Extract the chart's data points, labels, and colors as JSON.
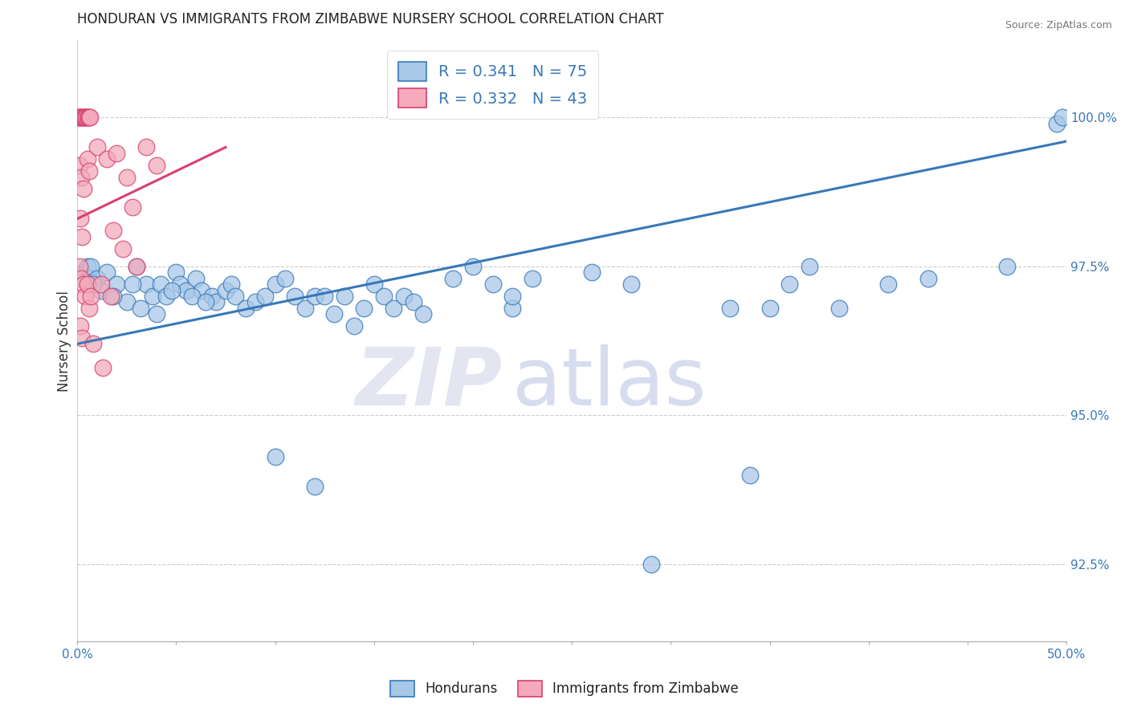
{
  "title": "HONDURAN VS IMMIGRANTS FROM ZIMBABWE NURSERY SCHOOL CORRELATION CHART",
  "source": "Source: ZipAtlas.com",
  "ylabel": "Nursery School",
  "ytick_values": [
    92.5,
    95.0,
    97.5,
    100.0
  ],
  "xlim": [
    0.0,
    50.0
  ],
  "ylim": [
    91.2,
    101.3
  ],
  "blue_color": "#a8c8e8",
  "pink_color": "#f4aabb",
  "blue_line_color": "#3878b8",
  "pink_line_color": "#d84070",
  "blue_regression": [
    0,
    96.2,
    50,
    99.6
  ],
  "pink_regression": [
    0,
    98.3,
    7.5,
    99.5
  ],
  "blue_dots": [
    [
      0.3,
      97.4
    ],
    [
      0.5,
      97.5
    ],
    [
      0.6,
      97.3
    ],
    [
      0.7,
      97.5
    ],
    [
      1.0,
      97.3
    ],
    [
      1.2,
      97.1
    ],
    [
      1.5,
      97.4
    ],
    [
      2.0,
      97.2
    ],
    [
      2.5,
      96.9
    ],
    [
      3.0,
      97.5
    ],
    [
      3.5,
      97.2
    ],
    [
      3.8,
      97.0
    ],
    [
      4.2,
      97.2
    ],
    [
      4.5,
      97.0
    ],
    [
      5.0,
      97.4
    ],
    [
      5.2,
      97.2
    ],
    [
      5.5,
      97.1
    ],
    [
      6.0,
      97.3
    ],
    [
      6.3,
      97.1
    ],
    [
      6.8,
      97.0
    ],
    [
      7.0,
      96.9
    ],
    [
      7.5,
      97.1
    ],
    [
      7.8,
      97.2
    ],
    [
      8.0,
      97.0
    ],
    [
      8.5,
      96.8
    ],
    [
      9.0,
      96.9
    ],
    [
      9.5,
      97.0
    ],
    [
      10.0,
      97.2
    ],
    [
      10.5,
      97.3
    ],
    [
      11.0,
      97.0
    ],
    [
      11.5,
      96.8
    ],
    [
      12.0,
      97.0
    ],
    [
      12.5,
      97.0
    ],
    [
      13.0,
      96.7
    ],
    [
      13.5,
      97.0
    ],
    [
      14.0,
      96.5
    ],
    [
      14.5,
      96.8
    ],
    [
      15.0,
      97.2
    ],
    [
      15.5,
      97.0
    ],
    [
      16.0,
      96.8
    ],
    [
      16.5,
      97.0
    ],
    [
      17.0,
      96.9
    ],
    [
      17.5,
      96.7
    ],
    [
      19.0,
      97.3
    ],
    [
      20.0,
      97.5
    ],
    [
      21.0,
      97.2
    ],
    [
      22.0,
      96.8
    ],
    [
      0.8,
      97.2
    ],
    [
      1.8,
      97.0
    ],
    [
      3.2,
      96.8
    ],
    [
      4.0,
      96.7
    ],
    [
      5.8,
      97.0
    ],
    [
      6.5,
      96.9
    ],
    [
      2.8,
      97.2
    ],
    [
      4.8,
      97.1
    ],
    [
      23.0,
      97.3
    ],
    [
      26.0,
      97.4
    ],
    [
      10.0,
      94.3
    ],
    [
      12.0,
      93.8
    ],
    [
      28.0,
      97.2
    ],
    [
      33.0,
      96.8
    ],
    [
      34.0,
      94.0
    ],
    [
      35.0,
      96.8
    ],
    [
      36.0,
      97.2
    ],
    [
      37.0,
      97.5
    ],
    [
      38.5,
      96.8
    ],
    [
      41.0,
      97.2
    ],
    [
      49.5,
      99.9
    ],
    [
      49.8,
      100.0
    ],
    [
      43.0,
      97.3
    ],
    [
      47.0,
      97.5
    ],
    [
      29.0,
      92.5
    ],
    [
      22.0,
      97.0
    ]
  ],
  "pink_dots": [
    [
      0.05,
      100.0
    ],
    [
      0.1,
      100.0
    ],
    [
      0.15,
      100.0
    ],
    [
      0.2,
      100.0
    ],
    [
      0.25,
      100.0
    ],
    [
      0.3,
      100.0
    ],
    [
      0.35,
      100.0
    ],
    [
      0.4,
      100.0
    ],
    [
      0.45,
      100.0
    ],
    [
      0.5,
      100.0
    ],
    [
      0.55,
      100.0
    ],
    [
      0.6,
      100.0
    ],
    [
      0.65,
      100.0
    ],
    [
      0.1,
      99.2
    ],
    [
      0.2,
      99.0
    ],
    [
      0.3,
      98.8
    ],
    [
      0.5,
      99.3
    ],
    [
      0.6,
      99.1
    ],
    [
      0.15,
      98.3
    ],
    [
      0.25,
      98.0
    ],
    [
      0.1,
      97.5
    ],
    [
      0.2,
      97.3
    ],
    [
      0.3,
      97.2
    ],
    [
      0.4,
      97.0
    ],
    [
      0.5,
      97.2
    ],
    [
      0.15,
      96.5
    ],
    [
      0.25,
      96.3
    ],
    [
      0.6,
      96.8
    ],
    [
      0.7,
      97.0
    ],
    [
      1.0,
      99.5
    ],
    [
      1.5,
      99.3
    ],
    [
      2.0,
      99.4
    ],
    [
      2.5,
      99.0
    ],
    [
      3.5,
      99.5
    ],
    [
      4.0,
      99.2
    ],
    [
      1.8,
      98.1
    ],
    [
      2.3,
      97.8
    ],
    [
      1.2,
      97.2
    ],
    [
      1.7,
      97.0
    ],
    [
      0.8,
      96.2
    ],
    [
      1.3,
      95.8
    ],
    [
      3.0,
      97.5
    ],
    [
      2.8,
      98.5
    ]
  ]
}
